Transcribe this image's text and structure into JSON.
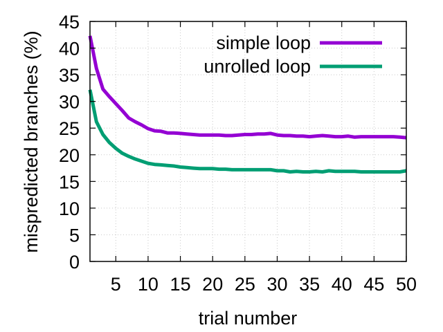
{
  "chart_data": {
    "type": "line",
    "title": "",
    "xlabel": "trial number",
    "ylabel": "mispredicted branches (%)",
    "xlim": [
      1,
      50
    ],
    "ylim": [
      0,
      45
    ],
    "xticks": [
      5,
      10,
      15,
      20,
      25,
      30,
      35,
      40,
      45,
      50
    ],
    "yticks": [
      0,
      5,
      10,
      15,
      20,
      25,
      30,
      35,
      40,
      45
    ],
    "grid": true,
    "legend_position": "top-right",
    "x": [
      1,
      2,
      3,
      4,
      5,
      6,
      7,
      8,
      9,
      10,
      11,
      12,
      13,
      14,
      15,
      16,
      17,
      18,
      19,
      20,
      21,
      22,
      23,
      24,
      25,
      26,
      27,
      28,
      29,
      30,
      31,
      32,
      33,
      34,
      35,
      36,
      37,
      38,
      39,
      40,
      41,
      42,
      43,
      44,
      45,
      46,
      47,
      48,
      49,
      50
    ],
    "series": [
      {
        "name": "simple loop",
        "color": "#9400d3",
        "values": [
          42.3,
          36.2,
          32.3,
          30.9,
          29.6,
          28.3,
          26.9,
          26.2,
          25.6,
          24.9,
          24.5,
          24.4,
          24.1,
          24.1,
          24.0,
          23.9,
          23.8,
          23.7,
          23.7,
          23.7,
          23.7,
          23.6,
          23.6,
          23.7,
          23.8,
          23.8,
          23.9,
          23.9,
          24.0,
          23.7,
          23.6,
          23.6,
          23.5,
          23.5,
          23.4,
          23.5,
          23.6,
          23.5,
          23.4,
          23.4,
          23.5,
          23.3,
          23.4,
          23.4,
          23.4,
          23.4,
          23.4,
          23.4,
          23.3,
          23.2
        ]
      },
      {
        "name": "unrolled loop",
        "color": "#009e73",
        "values": [
          32.2,
          26.2,
          23.8,
          22.3,
          21.2,
          20.3,
          19.7,
          19.2,
          18.8,
          18.4,
          18.2,
          18.1,
          18.0,
          17.9,
          17.7,
          17.6,
          17.5,
          17.4,
          17.4,
          17.4,
          17.3,
          17.3,
          17.2,
          17.2,
          17.2,
          17.2,
          17.2,
          17.2,
          17.2,
          17.0,
          17.0,
          16.8,
          16.9,
          16.8,
          16.8,
          16.9,
          16.8,
          17.0,
          16.9,
          16.9,
          16.9,
          16.9,
          16.8,
          16.8,
          16.8,
          16.8,
          16.8,
          16.8,
          16.8,
          17.0
        ]
      }
    ]
  }
}
